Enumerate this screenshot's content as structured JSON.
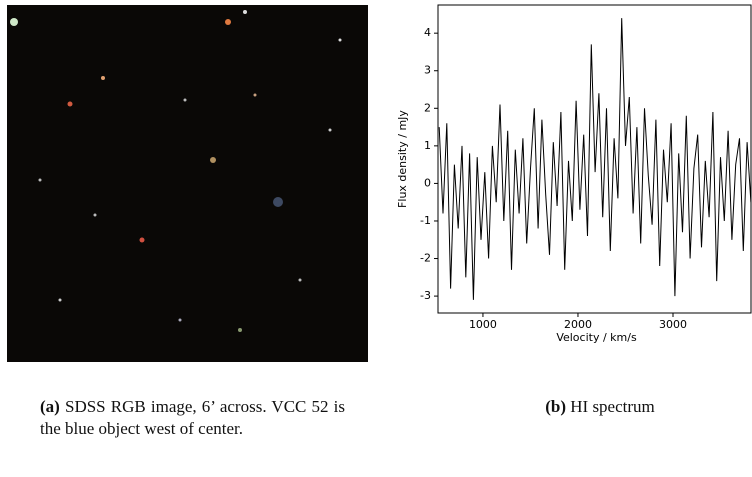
{
  "figure": {
    "panel_a": {
      "label": "(a)",
      "caption": "SDSS RGB image, 6’ across. VCC 52 is the blue object west of center."
    },
    "panel_b": {
      "label": "(b)",
      "caption": "HI spectrum"
    }
  },
  "chart_data": {
    "type": "line",
    "xlabel": "Velocity / km/s",
    "ylabel": "Flux density / mJy",
    "x": [
      540,
      580,
      620,
      660,
      700,
      740,
      780,
      820,
      860,
      900,
      940,
      980,
      1020,
      1060,
      1100,
      1140,
      1180,
      1220,
      1260,
      1300,
      1340,
      1380,
      1420,
      1460,
      1500,
      1540,
      1580,
      1620,
      1660,
      1700,
      1740,
      1780,
      1820,
      1860,
      1900,
      1940,
      1980,
      2020,
      2060,
      2100,
      2140,
      2180,
      2220,
      2260,
      2300,
      2340,
      2380,
      2420,
      2460,
      2500,
      2540,
      2580,
      2620,
      2660,
      2700,
      2740,
      2780,
      2820,
      2860,
      2900,
      2940,
      2980,
      3020,
      3060,
      3100,
      3140,
      3180,
      3220,
      3260,
      3300,
      3340,
      3380,
      3420,
      3460,
      3500,
      3540,
      3580,
      3620,
      3660,
      3700,
      3740,
      3780,
      3820
    ],
    "series": [
      {
        "name": "HI spectrum",
        "color": "#000000",
        "values": [
          1.5,
          -0.8,
          1.6,
          -2.8,
          0.5,
          -1.2,
          1.0,
          -2.5,
          0.8,
          -3.1,
          0.7,
          -1.5,
          0.3,
          -2.0,
          1.0,
          -0.5,
          2.1,
          -1.0,
          1.4,
          -2.3,
          0.9,
          -0.8,
          1.2,
          -1.6,
          0.4,
          2.0,
          -1.2,
          1.7,
          -0.3,
          -1.9,
          1.1,
          -0.6,
          1.9,
          -2.3,
          0.6,
          -1.0,
          2.2,
          -0.7,
          1.3,
          -1.4,
          3.7,
          0.3,
          2.4,
          -0.9,
          2.0,
          -1.8,
          1.2,
          -0.4,
          4.4,
          1.0,
          2.3,
          -0.8,
          1.5,
          -1.6,
          2.0,
          0.2,
          -1.1,
          1.7,
          -2.2,
          0.9,
          -0.5,
          1.6,
          -3.0,
          0.8,
          -1.3,
          1.8,
          -2.0,
          0.4,
          1.3,
          -1.7,
          0.6,
          -0.9,
          1.9,
          -2.6,
          0.7,
          -1.0,
          1.4,
          -1.5,
          0.5,
          1.2,
          -1.8,
          1.1,
          -0.5
        ]
      }
    ],
    "xlim": [
      527,
      3821
    ],
    "ylim": [
      -3.45,
      4.75
    ],
    "xticks": [
      1000,
      2000,
      3000
    ],
    "yticks": [
      -3,
      -2,
      -1,
      0,
      1,
      2,
      3,
      4
    ]
  }
}
